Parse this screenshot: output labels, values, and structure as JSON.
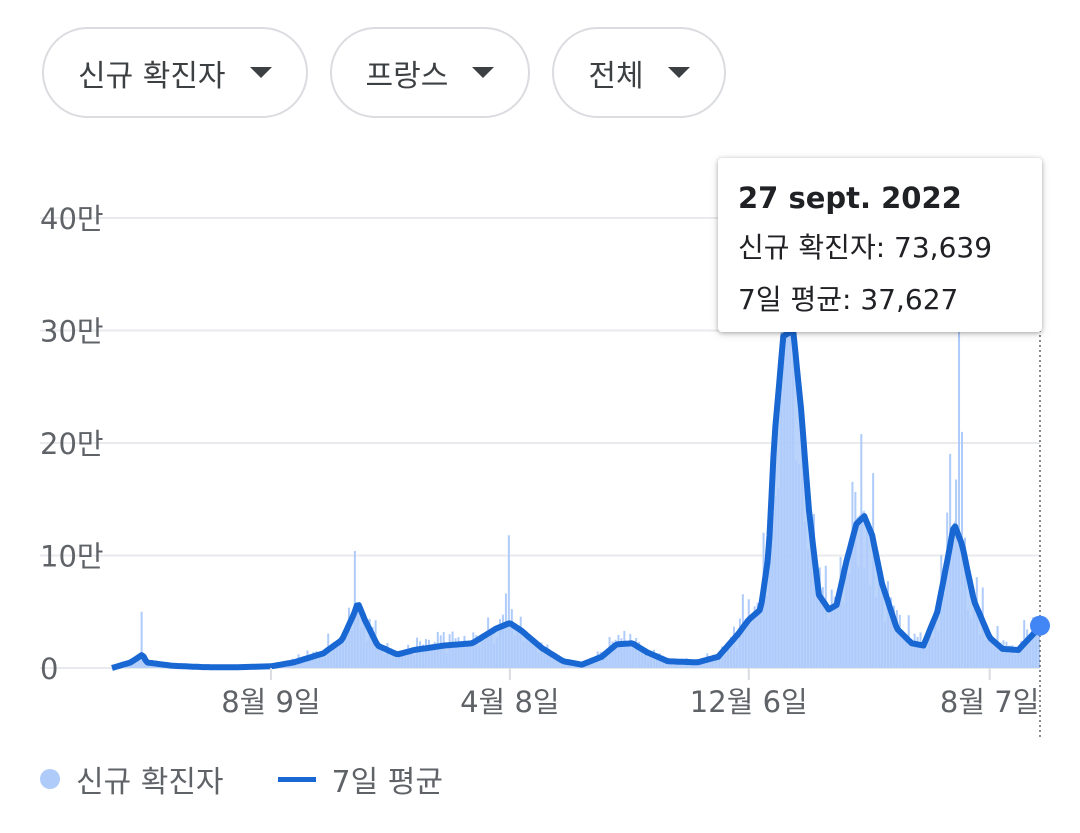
{
  "filters": [
    {
      "label": "신규 확진자"
    },
    {
      "label": "프랑스"
    },
    {
      "label": "전체"
    }
  ],
  "tooltip": {
    "date": "27 sept. 2022",
    "line1_label": "신규 확진자",
    "line1_value": "73,639",
    "line2_label": "7일 평균",
    "line2_value": "37,627"
  },
  "legend": {
    "cases_label": "신규 확진자",
    "average_label": "7일 평균"
  },
  "colors": {
    "bars": "#aecbfa",
    "line": "#1967d2",
    "marker": "#4285f4",
    "grid": "#e8eaed"
  },
  "chart_data": {
    "type": "area",
    "y_ticks": [
      "0",
      "10만",
      "20만",
      "30만",
      "40만"
    ],
    "y_tick_values": [
      0,
      100000,
      200000,
      300000,
      400000
    ],
    "ylim": [
      0,
      400000
    ],
    "x_ticks": [
      {
        "label": "8월 9일",
        "date": "2020-08-09"
      },
      {
        "label": "4월 8일",
        "date": "2021-04-08"
      },
      {
        "label": "12월 6일",
        "date": "2021-12-06"
      },
      {
        "label": "8월 7일",
        "date": "2022-08-07"
      }
    ],
    "x_range": [
      "2020-03-01",
      "2022-09-27"
    ],
    "series": [
      {
        "name": "7일 평균",
        "points": [
          [
            "2020-03-01",
            0
          ],
          [
            "2020-03-20",
            5000
          ],
          [
            "2020-04-01",
            12000
          ],
          [
            "2020-04-05",
            5000
          ],
          [
            "2020-05-01",
            2000
          ],
          [
            "2020-06-01",
            800
          ],
          [
            "2020-07-01",
            600
          ],
          [
            "2020-08-09",
            1500
          ],
          [
            "2020-09-01",
            5000
          ],
          [
            "2020-10-01",
            13000
          ],
          [
            "2020-10-20",
            25000
          ],
          [
            "2020-11-01",
            48000
          ],
          [
            "2020-11-05",
            58000
          ],
          [
            "2020-11-12",
            43000
          ],
          [
            "2020-11-25",
            20000
          ],
          [
            "2020-12-15",
            12000
          ],
          [
            "2021-01-01",
            16000
          ],
          [
            "2021-02-01",
            20000
          ],
          [
            "2021-03-01",
            22000
          ],
          [
            "2021-03-25",
            35000
          ],
          [
            "2021-04-08",
            40000
          ],
          [
            "2021-04-20",
            33000
          ],
          [
            "2021-05-10",
            18000
          ],
          [
            "2021-06-01",
            6000
          ],
          [
            "2021-06-20",
            3000
          ],
          [
            "2021-07-10",
            10000
          ],
          [
            "2021-07-25",
            21000
          ],
          [
            "2021-08-10",
            22000
          ],
          [
            "2021-08-25",
            14000
          ],
          [
            "2021-09-15",
            6000
          ],
          [
            "2021-10-15",
            5000
          ],
          [
            "2021-11-05",
            10000
          ],
          [
            "2021-11-25",
            30000
          ],
          [
            "2021-12-06",
            43000
          ],
          [
            "2021-12-18",
            52000
          ],
          [
            "2021-12-26",
            100000
          ],
          [
            "2022-01-01",
            205000
          ],
          [
            "2022-01-10",
            295000
          ],
          [
            "2022-01-20",
            300000
          ],
          [
            "2022-01-28",
            230000
          ],
          [
            "2022-02-05",
            140000
          ],
          [
            "2022-02-15",
            65000
          ],
          [
            "2022-02-25",
            52000
          ],
          [
            "2022-03-05",
            56000
          ],
          [
            "2022-03-15",
            95000
          ],
          [
            "2022-03-25",
            128000
          ],
          [
            "2022-04-02",
            135000
          ],
          [
            "2022-04-10",
            118000
          ],
          [
            "2022-04-20",
            75000
          ],
          [
            "2022-05-05",
            35000
          ],
          [
            "2022-05-20",
            22000
          ],
          [
            "2022-06-01",
            20000
          ],
          [
            "2022-06-15",
            50000
          ],
          [
            "2022-06-25",
            95000
          ],
          [
            "2022-07-02",
            128000
          ],
          [
            "2022-07-10",
            110000
          ],
          [
            "2022-07-22",
            60000
          ],
          [
            "2022-08-07",
            27000
          ],
          [
            "2022-08-20",
            17000
          ],
          [
            "2022-09-05",
            16000
          ],
          [
            "2022-09-20",
            30000
          ],
          [
            "2022-09-27",
            37627
          ]
        ]
      },
      {
        "name": "신규 확진자",
        "description_peaks": [
          [
            "2020-04-01",
            50000
          ],
          [
            "2020-11-02",
            104000
          ],
          [
            "2021-04-08",
            118000
          ],
          [
            "2022-01-07",
            368000
          ],
          [
            "2022-03-29",
            208000
          ],
          [
            "2022-07-08",
            300000
          ]
        ]
      }
    ],
    "highlight": {
      "date": "2022-09-27",
      "cases": 73639,
      "average": 37627
    }
  }
}
